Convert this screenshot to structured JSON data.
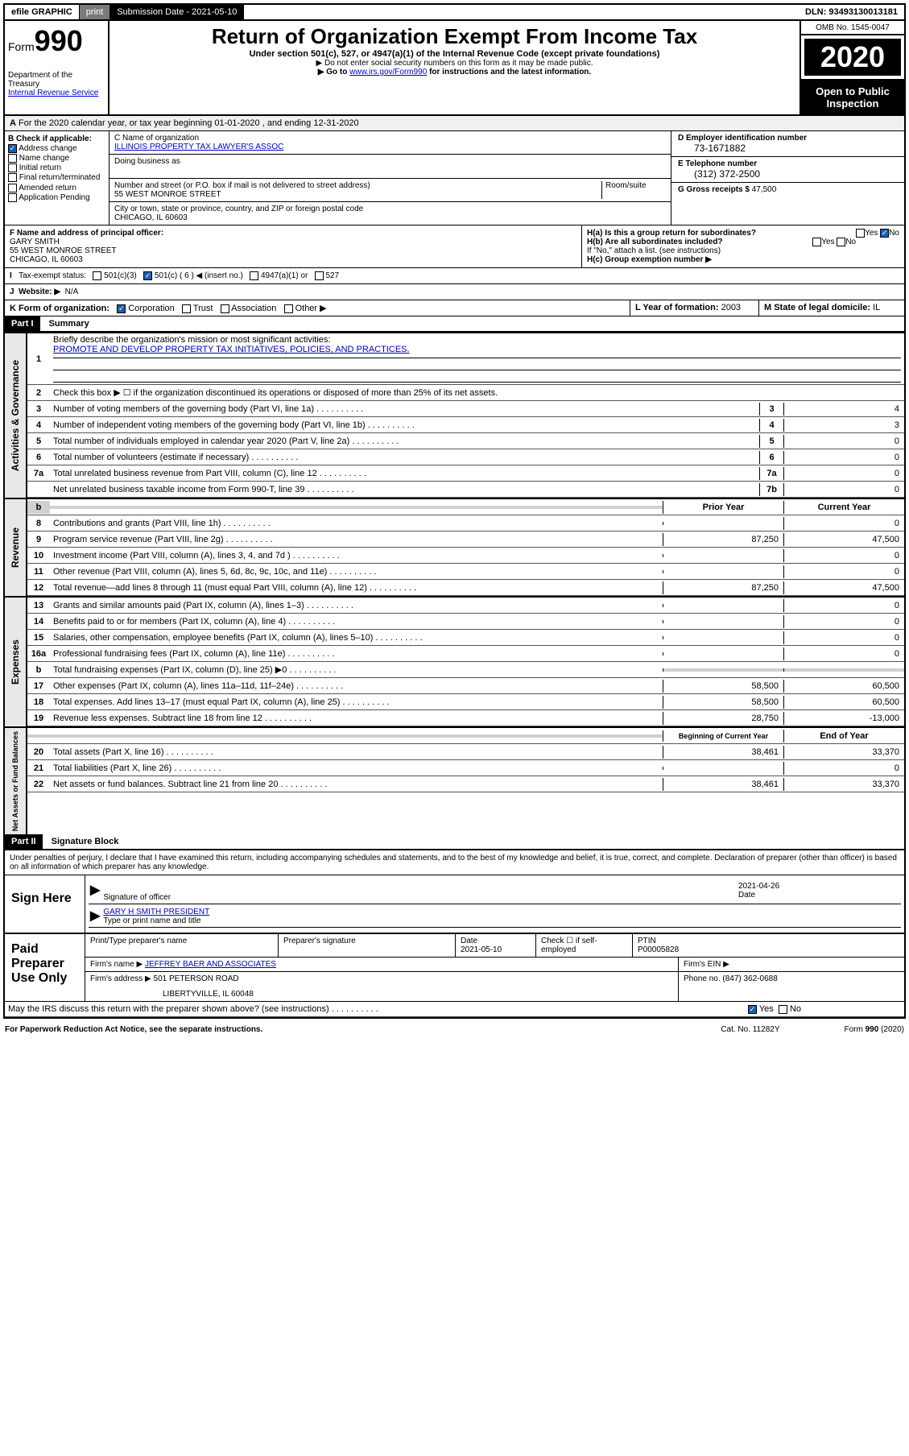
{
  "topbar": {
    "efile": "efile GRAPHIC",
    "print": "print",
    "subLabel": "Submission Date - 2021-05-10",
    "dln": "DLN: 93493130013181"
  },
  "header": {
    "formWord": "Form",
    "formNum": "990",
    "dept": "Department of the Treasury",
    "irs": "Internal Revenue Service",
    "title": "Return of Organization Exempt From Income Tax",
    "sub": "Under section 501(c), 527, or 4947(a)(1) of the Internal Revenue Code (except private foundations)",
    "note1": "▶ Do not enter social security numbers on this form as it may be made public.",
    "note2a": "▶ Go to ",
    "note2link": "www.irs.gov/Form990",
    "note2b": " for instructions and the latest information.",
    "omb": "OMB No. 1545-0047",
    "year": "2020",
    "otp1": "Open to Public",
    "otp2": "Inspection"
  },
  "A": {
    "text": "For the 2020 calendar year, or tax year beginning 01-01-2020   , and ending 12-31-2020"
  },
  "B": {
    "label": "B Check if applicable:",
    "opts": [
      "Address change",
      "Name change",
      "Initial return",
      "Final return/terminated",
      "Amended return",
      "Application Pending"
    ],
    "checked": [
      true,
      false,
      false,
      false,
      false,
      false
    ]
  },
  "C": {
    "nameLabel": "C Name of organization",
    "name": "ILLINOIS PROPERTY TAX LAWYER'S ASSOC",
    "dbaLabel": "Doing business as",
    "dba": "",
    "addrLabel": "Number and street (or P.O. box if mail is not delivered to street address)",
    "roomLabel": "Room/suite",
    "addr": "55 WEST MONROE STREET",
    "cityLabel": "City or town, state or province, country, and ZIP or foreign postal code",
    "city": "CHICAGO, IL  60603"
  },
  "D": {
    "label": "D Employer identification number",
    "val": "73-1671882"
  },
  "E": {
    "label": "E Telephone number",
    "val": "(312) 372-2500"
  },
  "G": {
    "label": "G Gross receipts $",
    "val": "47,500"
  },
  "F": {
    "label": "F  Name and address of principal officer:",
    "name": "GARY SMITH",
    "addr": "55 WEST MONROE STREET",
    "city": "CHICAGO, IL  60603"
  },
  "H": {
    "a": "H(a)  Is this a group return for subordinates?",
    "b": "H(b)  Are all subordinates included?",
    "bIf": "If \"No,\" attach a list. (see instructions)",
    "c": "H(c)  Group exemption number ▶"
  },
  "I": {
    "label": "Tax-exempt status:",
    "o1": "501(c)(3)",
    "o2": "501(c) ( 6 ) ◀ (insert no.)",
    "o3": "4947(a)(1) or",
    "o4": "527"
  },
  "J": {
    "label": "Website: ▶",
    "val": "N/A"
  },
  "K": {
    "label": "K Form of organization:",
    "opts": [
      "Corporation",
      "Trust",
      "Association",
      "Other ▶"
    ]
  },
  "L": {
    "label": "L Year of formation:",
    "val": "2003"
  },
  "M": {
    "label": "M State of legal domicile:",
    "val": "IL"
  },
  "part1": {
    "hdr": "Part I",
    "title": "Summary",
    "l1": "Briefly describe the organization's mission or most significant activities:",
    "l1v": "PROMOTE AND DEVELOP PROPERTY TAX INITIATIVES, POLICIES, AND PRACTICES.",
    "l2": "Check this box ▶ ☐ if the organization discontinued its operations or disposed of more than 25% of its net assets.",
    "lines": [
      {
        "n": "3",
        "t": "Number of voting members of the governing body (Part VI, line 1a)",
        "b": "3",
        "v": "4"
      },
      {
        "n": "4",
        "t": "Number of independent voting members of the governing body (Part VI, line 1b)",
        "b": "4",
        "v": "3"
      },
      {
        "n": "5",
        "t": "Total number of individuals employed in calendar year 2020 (Part V, line 2a)",
        "b": "5",
        "v": "0"
      },
      {
        "n": "6",
        "t": "Total number of volunteers (estimate if necessary)",
        "b": "6",
        "v": "0"
      },
      {
        "n": "7a",
        "t": "Total unrelated business revenue from Part VIII, column (C), line 12",
        "b": "7a",
        "v": "0"
      },
      {
        "n": "",
        "t": "Net unrelated business taxable income from Form 990-T, line 39",
        "b": "7b",
        "v": "0"
      }
    ],
    "colHdr1": "Prior Year",
    "colHdr2": "Current Year",
    "revenue": [
      {
        "n": "8",
        "t": "Contributions and grants (Part VIII, line 1h)",
        "p": "",
        "c": "0"
      },
      {
        "n": "9",
        "t": "Program service revenue (Part VIII, line 2g)",
        "p": "87,250",
        "c": "47,500"
      },
      {
        "n": "10",
        "t": "Investment income (Part VIII, column (A), lines 3, 4, and 7d )",
        "p": "",
        "c": "0"
      },
      {
        "n": "11",
        "t": "Other revenue (Part VIII, column (A), lines 5, 6d, 8c, 9c, 10c, and 11e)",
        "p": "",
        "c": "0"
      },
      {
        "n": "12",
        "t": "Total revenue—add lines 8 through 11 (must equal Part VIII, column (A), line 12)",
        "p": "87,250",
        "c": "47,500"
      }
    ],
    "expenses": [
      {
        "n": "13",
        "t": "Grants and similar amounts paid (Part IX, column (A), lines 1–3)",
        "p": "",
        "c": "0"
      },
      {
        "n": "14",
        "t": "Benefits paid to or for members (Part IX, column (A), line 4)",
        "p": "",
        "c": "0"
      },
      {
        "n": "15",
        "t": "Salaries, other compensation, employee benefits (Part IX, column (A), lines 5–10)",
        "p": "",
        "c": "0"
      },
      {
        "n": "16a",
        "t": "Professional fundraising fees (Part IX, column (A), line 11e)",
        "p": "",
        "c": "0"
      },
      {
        "n": "b",
        "t": "Total fundraising expenses (Part IX, column (D), line 25) ▶0",
        "p": "gray",
        "c": "gray"
      },
      {
        "n": "17",
        "t": "Other expenses (Part IX, column (A), lines 11a–11d, 11f–24e)",
        "p": "58,500",
        "c": "60,500"
      },
      {
        "n": "18",
        "t": "Total expenses. Add lines 13–17 (must equal Part IX, column (A), line 25)",
        "p": "58,500",
        "c": "60,500"
      },
      {
        "n": "19",
        "t": "Revenue less expenses. Subtract line 18 from line 12",
        "p": "28,750",
        "c": "-13,000"
      }
    ],
    "colHdr3": "Beginning of Current Year",
    "colHdr4": "End of Year",
    "netassets": [
      {
        "n": "20",
        "t": "Total assets (Part X, line 16)",
        "p": "38,461",
        "c": "33,370"
      },
      {
        "n": "21",
        "t": "Total liabilities (Part X, line 26)",
        "p": "",
        "c": "0"
      },
      {
        "n": "22",
        "t": "Net assets or fund balances. Subtract line 21 from line 20",
        "p": "38,461",
        "c": "33,370"
      }
    ],
    "sideLabels": [
      "Activities & Governance",
      "Revenue",
      "Expenses",
      "Net Assets or Fund Balances"
    ]
  },
  "part2": {
    "hdr": "Part II",
    "title": "Signature Block",
    "pen": "Under penalties of perjury, I declare that I have examined this return, including accompanying schedules and statements, and to the best of my knowledge and belief, it is true, correct, and complete. Declaration of preparer (other than officer) is based on all information of which preparer has any knowledge."
  },
  "sign": {
    "label": "Sign Here",
    "sigOf": "Signature of officer",
    "date": "2021-04-26",
    "dateL": "Date",
    "name": "GARY H SMITH  PRESIDENT",
    "nameL": "Type or print name and title"
  },
  "prep": {
    "label": "Paid Preparer Use Only",
    "h1": "Print/Type preparer's name",
    "h2": "Preparer's signature",
    "h3": "Date",
    "h3v": "2021-05-10",
    "h4": "Check ☐ if self-employed",
    "h5": "PTIN",
    "h5v": "P00005828",
    "firmL": "Firm's name    ▶",
    "firm": "JEFFREY BAER AND ASSOCIATES",
    "einL": "Firm's EIN ▶",
    "addrL": "Firm's address ▶",
    "addr1": "501 PETERSON ROAD",
    "addr2": "LIBERTYVILLE, IL  60048",
    "phoneL": "Phone no.",
    "phone": "(847) 362-0688"
  },
  "bottom": {
    "discuss": "May the IRS discuss this return with the preparer shown above? (see instructions)",
    "paper": "For Paperwork Reduction Act Notice, see the separate instructions.",
    "cat": "Cat. No. 11282Y",
    "form": "Form 990 (2020)"
  }
}
